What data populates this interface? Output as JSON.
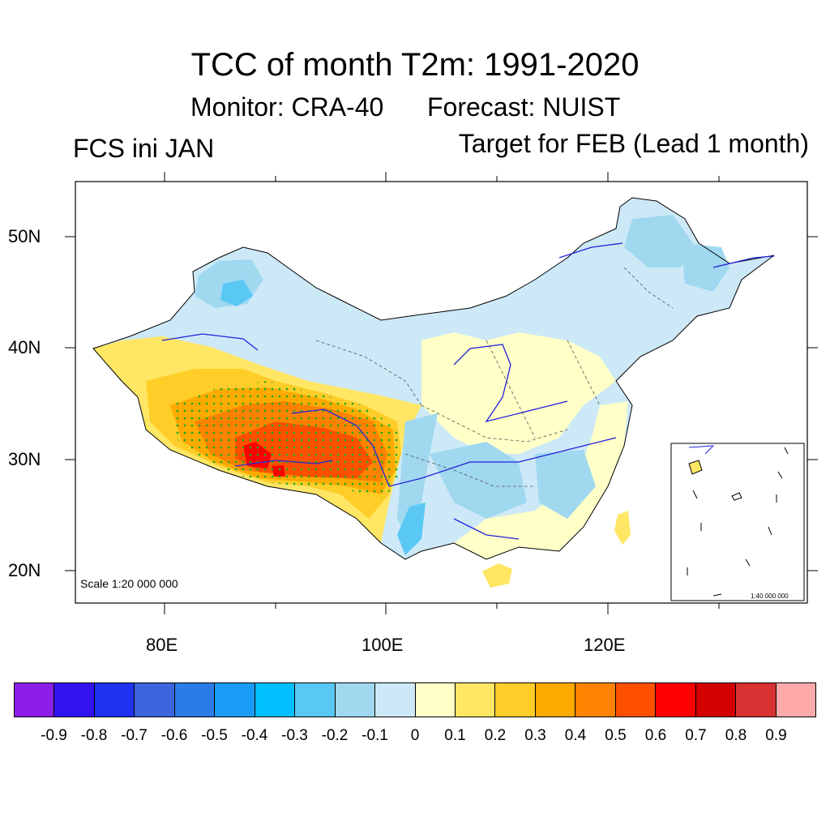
{
  "title": "TCC of month T2m: 1991-2020",
  "subtitle": {
    "monitor": "Monitor: CRA-40",
    "forecast": "Forecast: NUIST"
  },
  "left_label": "FCS ini JAN",
  "right_label": "Target for FEB (Lead 1 month)",
  "map": {
    "scale_text": "Scale 1:20 000 000",
    "inset_scale_text": "1:40 000 000",
    "lat_labels": [
      "50N",
      "40N",
      "30N",
      "20N"
    ],
    "lon_labels": [
      "80E",
      "100E",
      "120E"
    ]
  },
  "colorbar": {
    "labels": [
      "-0.9",
      "-0.8",
      "-0.7",
      "-0.6",
      "-0.5",
      "-0.4",
      "-0.3",
      "-0.2",
      "-0.1",
      "0",
      "0.1",
      "0.2",
      "0.3",
      "0.4",
      "0.5",
      "0.6",
      "0.7",
      "0.8",
      "0.9"
    ],
    "colors": [
      "#8c1ee8",
      "#3214f0",
      "#1e32f0",
      "#3c64dc",
      "#2c7ce8",
      "#1a9bf5",
      "#00c0ff",
      "#5ac8f5",
      "#a0d8f0",
      "#cde9f7",
      "#ffffc8",
      "#ffe664",
      "#ffcd28",
      "#ffaa00",
      "#ff8200",
      "#ff5000",
      "#ff0000",
      "#d20000",
      "#d83232",
      "#ffaaaa"
    ]
  }
}
